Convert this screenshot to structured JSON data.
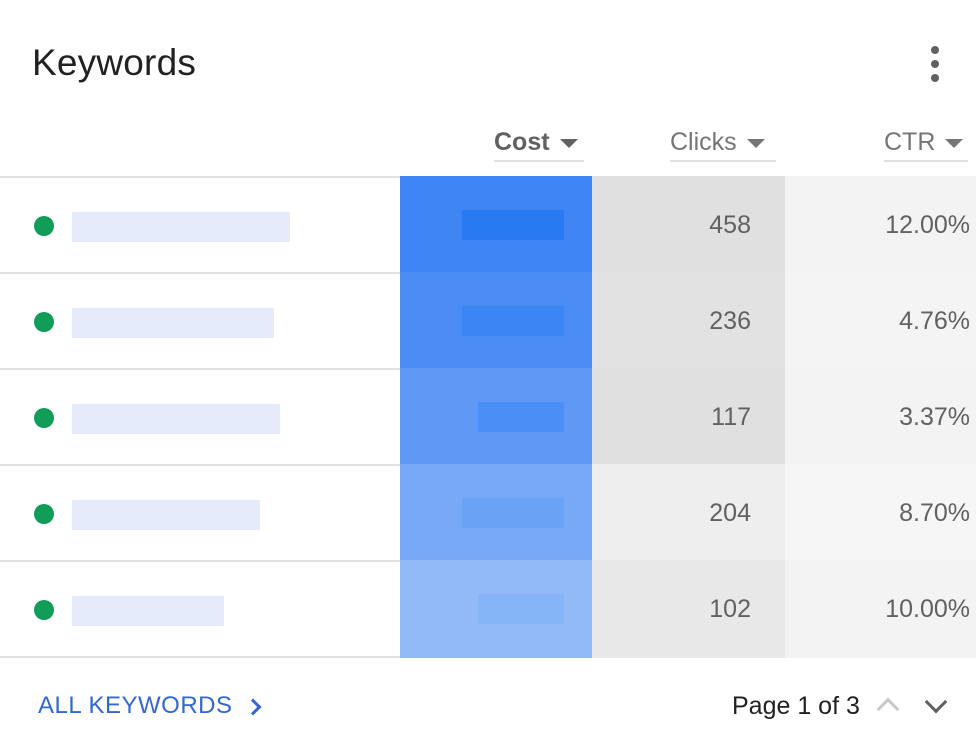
{
  "card": {
    "title": "Keywords",
    "more_icon": "more-vert-icon"
  },
  "columns": [
    {
      "label": "Cost",
      "sorted": true,
      "icon": "sort-arrow-down-icon"
    },
    {
      "label": "Clicks",
      "sorted": false,
      "icon": "sort-arrow-down-icon"
    },
    {
      "label": "CTR",
      "sorted": false,
      "icon": "sort-arrow-down-icon"
    }
  ],
  "rows": [
    {
      "status": "active",
      "clicks": "458",
      "ctr": "12.00%"
    },
    {
      "status": "active",
      "clicks": "236",
      "ctr": "4.76%"
    },
    {
      "status": "active",
      "clicks": "117",
      "ctr": "3.37%"
    },
    {
      "status": "active",
      "clicks": "204",
      "ctr": "8.70%"
    },
    {
      "status": "active",
      "clicks": "102",
      "ctr": "10.00%"
    }
  ],
  "footer": {
    "all_link": "ALL KEYWORDS",
    "all_link_icon": "chevron-right-icon",
    "page_label": "Page 1 of 3",
    "prev_icon": "chevron-up-icon",
    "next_icon": "chevron-down-icon"
  },
  "colors": {
    "status_active": "#0f9d58",
    "link": "#3367d6",
    "keyword_placeholder": "#e6ebfb",
    "cost_cells": [
      "#3f85f4",
      "#4b8cf4",
      "#5f99f5",
      "#78a9f6",
      "#91baf7"
    ],
    "cost_values": [
      "#2979f2",
      "#3a85f3",
      "#4a8ff5",
      "#6aa3f6",
      "#86b5f7"
    ],
    "clicks_cells": [
      "#e0e0e0",
      "#e2e2e2",
      "#e0e0e0",
      "#eeeeee",
      "#e8e8e8"
    ],
    "ctr_cells": [
      "#f3f3f3",
      "#f4f4f4",
      "#f3f3f3",
      "#f6f6f6",
      "#f3f3f3"
    ]
  }
}
